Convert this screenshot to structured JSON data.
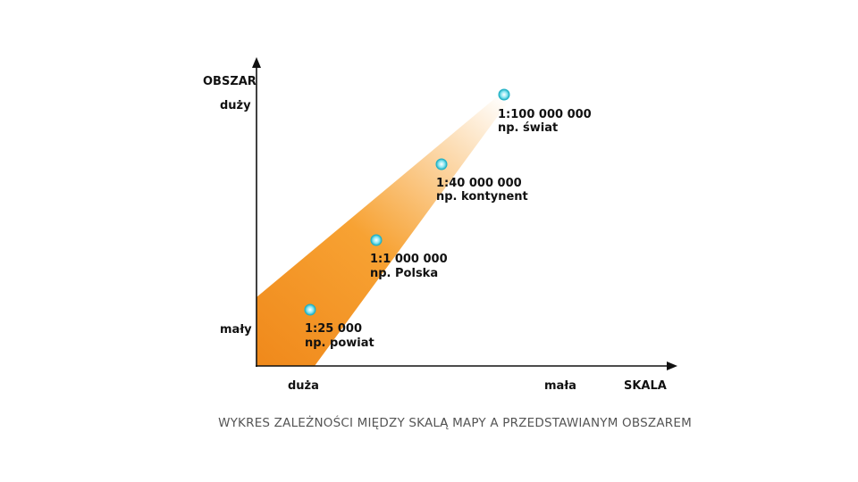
{
  "axes": {
    "y_title": "OBSZAR",
    "y_high": "duży",
    "y_low": "mały",
    "x_title": "SKALA",
    "x_left": "duża",
    "x_right": "mała"
  },
  "points": [
    {
      "scale": "1:25 000",
      "example": "np. powiat"
    },
    {
      "scale": "1:1 000 000",
      "example": "np. Polska"
    },
    {
      "scale": "1:40 000 000",
      "example": "np. kontynent"
    },
    {
      "scale": "1:100 000 000",
      "example": "np. świat"
    }
  ],
  "colors": {
    "band_start": "#f08a1c",
    "band_end": "#ffffff",
    "point_fill": "#7fe3ee",
    "point_stroke": "#1fb0c4",
    "axis": "#111111"
  },
  "caption": "WYKRES ZALEŻNOŚCI MIĘDZY SKALĄ MAPY A PRZEDSTAWIANYM OBSZAREM"
}
